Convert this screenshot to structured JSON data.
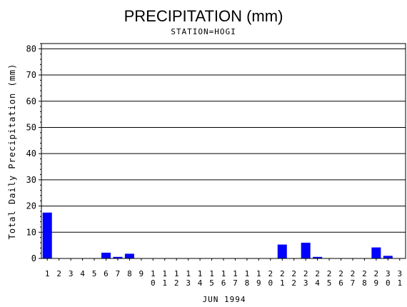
{
  "chart_data": {
    "type": "bar",
    "title": "PRECIPITATION (mm)",
    "subtitle": "STATION=HOGI",
    "xlabel": "JUN 1994",
    "ylabel": "Total Daily Precipitation (mm)",
    "ylim": [
      0,
      82
    ],
    "yticks": [
      0,
      10,
      20,
      30,
      40,
      50,
      60,
      70,
      80
    ],
    "grid": true,
    "bar_color": "#0000ff",
    "categories": [
      "1",
      "2",
      "3",
      "4",
      "5",
      "6",
      "7",
      "8",
      "9",
      "10",
      "11",
      "12",
      "13",
      "14",
      "15",
      "16",
      "17",
      "18",
      "19",
      "20",
      "21",
      "22",
      "23",
      "24",
      "25",
      "26",
      "27",
      "28",
      "29",
      "30",
      "31"
    ],
    "values": [
      17.5,
      0,
      0,
      0,
      0,
      2.2,
      0.6,
      1.8,
      0,
      0,
      0,
      0,
      0,
      0,
      0,
      0,
      0,
      0,
      0,
      0,
      5.3,
      0,
      6.0,
      0.6,
      0,
      0,
      0,
      0,
      4.2,
      1.0,
      0
    ]
  }
}
